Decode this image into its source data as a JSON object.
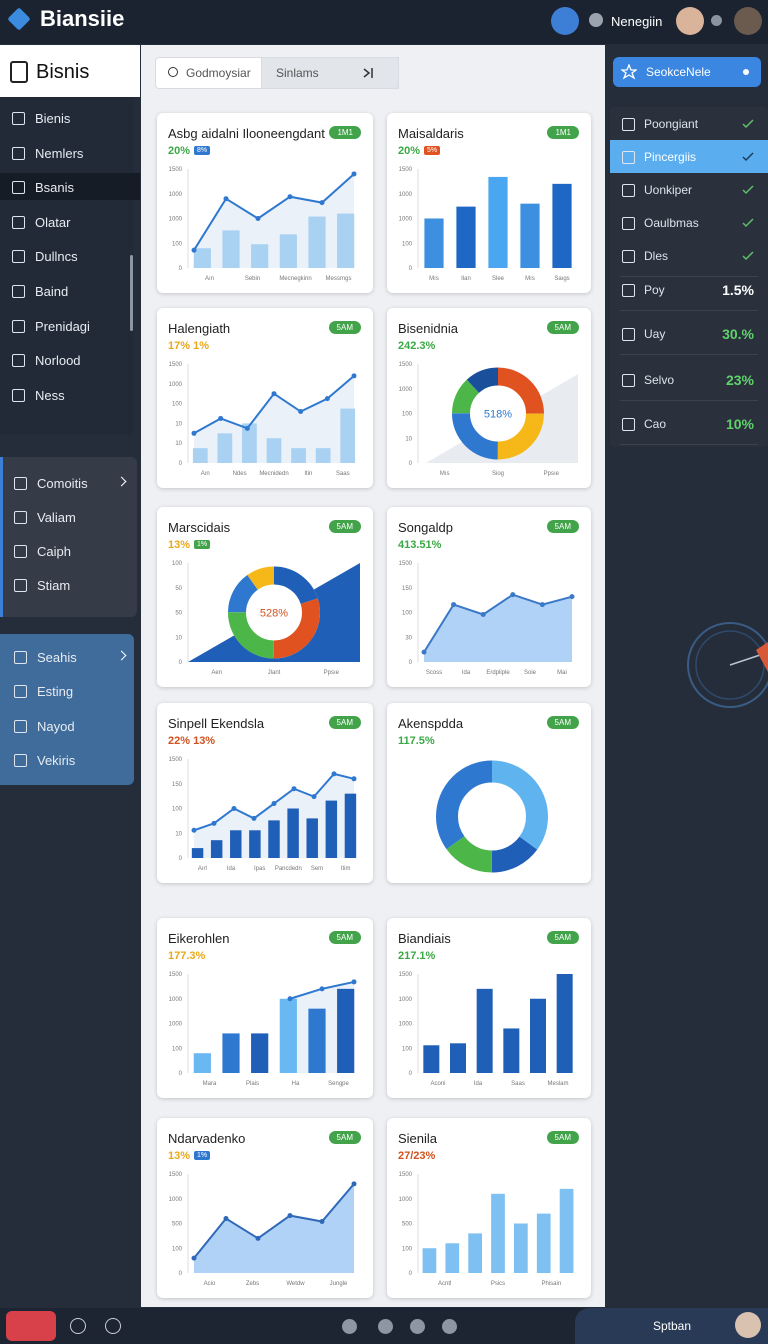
{
  "header": {
    "logo": "Biansiie",
    "user": "Nenegiin"
  },
  "sidebar": {
    "title": "Bisnis",
    "groups": [
      {
        "items": [
          "Bienis",
          "Nemlers",
          "Bsanis",
          "Olatar",
          "Dullncs",
          "Baind",
          "Prenidagi",
          "Norlood",
          "Ness"
        ]
      },
      {
        "items": [
          "Comoitis",
          "Valiam",
          "Caiph",
          "Stiam"
        ]
      },
      {
        "items": [
          "Seahis",
          "Esting",
          "Nayod",
          "Vekiris"
        ]
      }
    ]
  },
  "search": {
    "placeholder": "Godmoysiar",
    "filter": "Sinlams"
  },
  "right_panel": {
    "button": "SeokceNele",
    "items": [
      {
        "label": "Poongiant"
      },
      {
        "label": "Pincergiis"
      },
      {
        "label": "Uonkiper"
      },
      {
        "label": "Oaulbmas"
      },
      {
        "label": "Dles"
      },
      {
        "label": "Poy",
        "value": "1.5%"
      },
      {
        "label": "Uay",
        "value": "30.%"
      },
      {
        "label": "Selvo",
        "value": "23%"
      },
      {
        "label": "Cao",
        "value": "10%"
      }
    ]
  },
  "cards": [
    {
      "title": "Asbg aidalni Ilooneengdant",
      "badge": "1M1",
      "sub": "20%",
      "tag": "8%",
      "type": "combo",
      "yaxis": [
        "1500",
        "1000",
        "1000",
        "100",
        "0"
      ],
      "x": [
        "Aın",
        "Sebin",
        "Mecnegkinn",
        "Messrngs"
      ],
      "bars": [
        20,
        38,
        24,
        34,
        52,
        55
      ],
      "line": [
        18,
        70,
        50,
        72,
        66,
        95
      ],
      "colors": [
        "#a9d2f2"
      ]
    },
    {
      "title": "Maisaldaris",
      "badge": "1M1",
      "sub": "20%",
      "tag": "5%",
      "type": "bar",
      "yaxis": [
        "1500",
        "1000",
        "1000",
        "100",
        "0"
      ],
      "x": [
        "Mıs",
        "Ilan",
        "Slee",
        "Mıs",
        "Saıgs"
      ],
      "bars": [
        50,
        62,
        92,
        65,
        85
      ],
      "colors": [
        "#3d8fe0",
        "#1f67c4",
        "#4aa6f0"
      ]
    },
    {
      "title": "Halengiath",
      "badge": "5AM",
      "sub": "17% 1%",
      "type": "combo",
      "yaxis": [
        "1500",
        "1000",
        "100",
        "10",
        "10",
        "0"
      ],
      "x": [
        "Aın",
        "Ndes",
        "Mecnidedn",
        "Itin",
        "Saas"
      ],
      "bars": [
        15,
        30,
        40,
        25,
        15,
        15,
        55
      ],
      "line": [
        30,
        45,
        35,
        70,
        52,
        65,
        88
      ],
      "colors": [
        "#a9d2f2"
      ]
    },
    {
      "title": "Bisenidnia",
      "badge": "5AM",
      "sub": "242.3%",
      "type": "donut",
      "center": "518%",
      "yaxis": [
        "1500",
        "1000",
        "100",
        "10",
        "0"
      ],
      "x": [
        "Mıs",
        "Siog",
        "Ppsıe"
      ],
      "donut": [
        25,
        25,
        25,
        13,
        12
      ],
      "colors": [
        "#e0521f",
        "#f5b818",
        "#2f78d0",
        "#4cb649",
        "#1a4f9c"
      ]
    },
    {
      "title": "Marscidais",
      "badge": "5AM",
      "sub": "13%",
      "tag": "1%",
      "type": "donut",
      "wedge": true,
      "center": "528%",
      "yaxis": [
        "100",
        "50",
        "50",
        "10",
        "0"
      ],
      "x": [
        "Aen",
        "Jlant",
        "Ppsıe"
      ],
      "donut": [
        20,
        30,
        25,
        15,
        10
      ],
      "colors": [
        "#1f5fb8",
        "#e0521f",
        "#4cb649",
        "#2f78d0",
        "#f5b818"
      ]
    },
    {
      "title": "Songaldp",
      "badge": "5AM",
      "sub": "413.51%",
      "type": "area",
      "yaxis": [
        "1500",
        "150",
        "100",
        "30",
        "0"
      ],
      "x": [
        "Scoss",
        "Ida",
        "Erdpliple",
        "Soie",
        "Mai"
      ],
      "line": [
        10,
        58,
        48,
        68,
        58,
        66
      ],
      "colors": [
        "#3a78c8"
      ]
    },
    {
      "title": "Sinpell Ekendsla",
      "badge": "5AM",
      "sub": "22% 13%",
      "type": "combo",
      "yaxis": [
        "1500",
        "150",
        "100",
        "10",
        "0"
      ],
      "x": [
        "Aırl",
        "Ida",
        "Ipas",
        "Pancdedn",
        "Sem",
        "Itim"
      ],
      "bars": [
        10,
        18,
        28,
        28,
        38,
        50,
        40,
        58,
        65
      ],
      "line": [
        28,
        35,
        50,
        40,
        55,
        70,
        62,
        85,
        80
      ],
      "colors": [
        "#1f5fb8"
      ]
    },
    {
      "title": "Akenspdda",
      "badge": "5AM",
      "sub": "117.5%",
      "type": "donut",
      "donut": [
        35,
        15,
        15,
        35
      ],
      "colors": [
        "#5fb4f0",
        "#1f5fb8",
        "#4cb649",
        "#2f78d0"
      ]
    },
    {
      "title": "Eikerohlen",
      "badge": "5AM",
      "sub": "177.3%",
      "type": "combo",
      "yaxis": [
        "1500",
        "1000",
        "1000",
        "100",
        "0"
      ],
      "x": [
        "Mara",
        "Plais",
        "Ha",
        "Sengpe"
      ],
      "bars": [
        20,
        40,
        40,
        75,
        65,
        85
      ],
      "line": [
        null,
        null,
        null,
        75,
        85,
        92
      ],
      "colors": [
        "#6ab8f2",
        "#2f78d0",
        "#1f5fb8"
      ]
    },
    {
      "title": "Biandiais",
      "badge": "5AM",
      "sub": "217.1%",
      "type": "bar",
      "yaxis": [
        "1500",
        "1000",
        "1000",
        "100",
        "0"
      ],
      "x": [
        "Aconi",
        "Ida",
        "Saas",
        "Meslam"
      ],
      "bars": [
        28,
        30,
        85,
        45,
        75,
        100
      ],
      "colors": [
        "#1f5fb8"
      ]
    },
    {
      "title": "Ndarvadenko",
      "badge": "5AM",
      "sub": "13%",
      "tag": "1%",
      "type": "area",
      "yaxis": [
        "1500",
        "1000",
        "500",
        "100",
        "0"
      ],
      "x": [
        "Acio",
        "Zebs",
        "Wetdw",
        "Jungle"
      ],
      "line": [
        15,
        55,
        35,
        58,
        52,
        90
      ],
      "colors": [
        "#2f68b8"
      ]
    },
    {
      "title": "Sienila",
      "badge": "5AM",
      "sub": "27/23%",
      "type": "bar",
      "yaxis": [
        "1500",
        "1000",
        "500",
        "100",
        "0"
      ],
      "x": [
        "Acntl",
        "Psics",
        "Phisain"
      ],
      "bars": [
        25,
        30,
        40,
        80,
        50,
        60,
        85
      ],
      "colors": [
        "#7ec0f2"
      ]
    }
  ],
  "footer": {
    "label": "Sptban"
  }
}
